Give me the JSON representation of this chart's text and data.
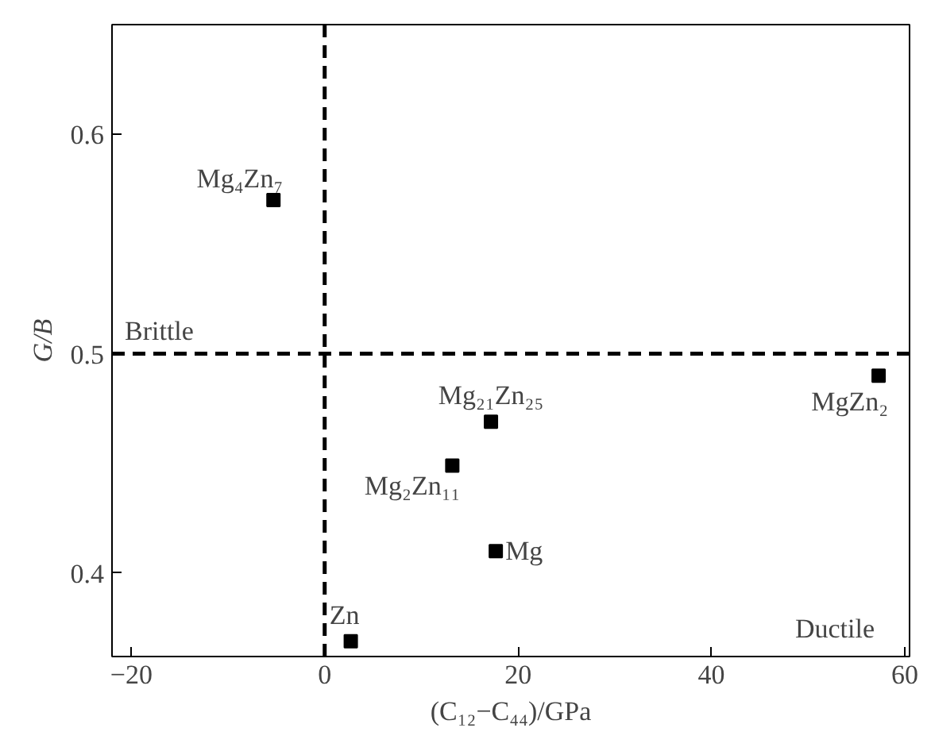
{
  "chart_data": {
    "type": "scatter",
    "xlabel": "(C₁₂−C₄₄)/GPa",
    "ylabel": "G/B",
    "x": [
      -5.3,
      17.2,
      57.3,
      13.2,
      17.7,
      2.7
    ],
    "series": [
      {
        "color": "#000000",
        "values": [
          0.57,
          0.469,
          0.49,
          0.449,
          0.41,
          0.369
        ]
      }
    ],
    "marker": "square",
    "xlim": [
      -22,
      60.5
    ],
    "ylim": [
      0.362,
      0.65
    ],
    "xticks": [
      -20,
      0,
      20,
      40,
      60
    ],
    "yticks": [
      0.4,
      0.5,
      0.6
    ],
    "grid": false,
    "ref_lines": [
      {
        "axis": "x",
        "value": 0,
        "line_style": "dashed",
        "color": "#000000"
      },
      {
        "axis": "y",
        "value": 0.5,
        "label": "Brittle",
        "line_style": "dashed",
        "color": "#000000"
      }
    ],
    "annotations": [
      {
        "text": "Mg₄Zn₇",
        "x": -5.3,
        "y": 0.57
      },
      {
        "text": "Mg₂₁Zn₂₅",
        "x": 17.2,
        "y": 0.469
      },
      {
        "text": "MgZn₂",
        "x": 57.3,
        "y": 0.49
      },
      {
        "text": "Mg₂Zn₁₁",
        "x": 13.2,
        "y": 0.449
      },
      {
        "text": "Mg",
        "x": 17.7,
        "y": 0.41
      },
      {
        "text": "Zn",
        "x": 2.7,
        "y": 0.369
      },
      "Ductile"
    ]
  }
}
